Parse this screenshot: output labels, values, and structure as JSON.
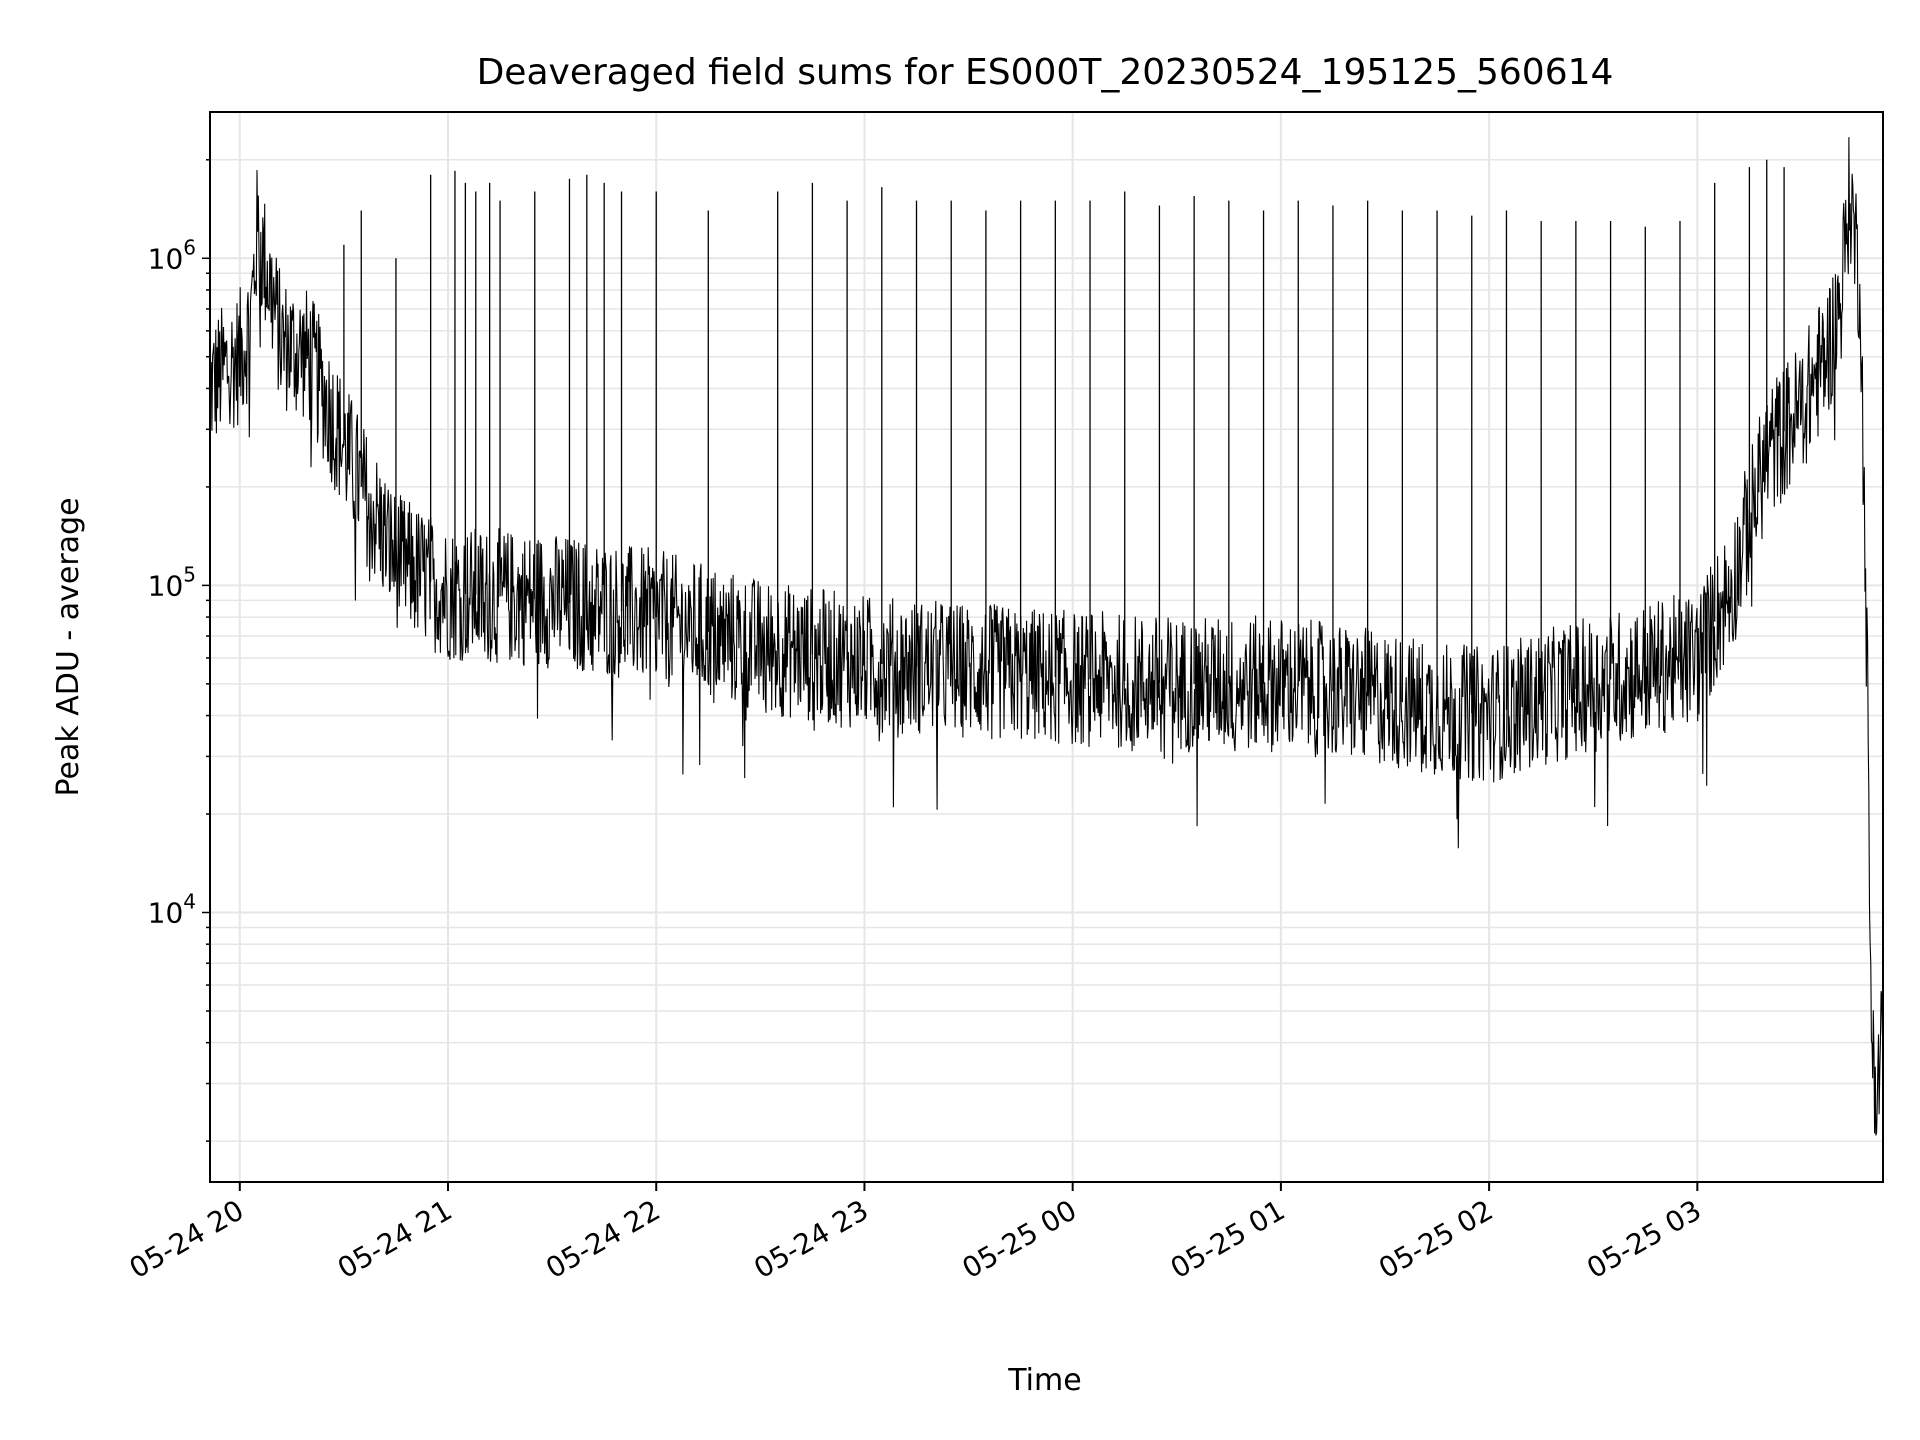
{
  "chart_data": {
    "type": "line",
    "title": "Deaveraged field sums for ES000T_20230524_195125_560614",
    "xlabel": "Time",
    "ylabel": "Peak ADU - average",
    "y_scale": "log",
    "ylim": [
      1500,
      2800000
    ],
    "xlim": [
      "2023-05-24 19:51:25",
      "2023-05-25 03:53:30"
    ],
    "grid": true,
    "legend": "none",
    "line_color": "#000000",
    "grid_color": "#e6e6e6",
    "x_ticks": [
      {
        "t": "2023-05-24 20:00",
        "label": "05-24 20"
      },
      {
        "t": "2023-05-24 21:00",
        "label": "05-24 21"
      },
      {
        "t": "2023-05-24 22:00",
        "label": "05-24 22"
      },
      {
        "t": "2023-05-24 23:00",
        "label": "05-24 23"
      },
      {
        "t": "2023-05-25 00:00",
        "label": "05-25 00"
      },
      {
        "t": "2023-05-25 01:00",
        "label": "05-25 01"
      },
      {
        "t": "2023-05-25 02:00",
        "label": "05-25 02"
      },
      {
        "t": "2023-05-25 03:00",
        "label": "05-25 03"
      }
    ],
    "y_ticks": [
      {
        "value": 10000,
        "base": "10",
        "exp": "4"
      },
      {
        "value": 100000,
        "base": "10",
        "exp": "5"
      },
      {
        "value": 1000000,
        "base": "10",
        "exp": "6"
      }
    ],
    "baseline": {
      "x": [
        "2023-05-24 19:51:25",
        "2023-05-24 19:55",
        "2023-05-24 20:00",
        "2023-05-24 20:03",
        "2023-05-24 20:05",
        "2023-05-24 20:08",
        "2023-05-24 20:12",
        "2023-05-24 20:20",
        "2023-05-24 20:28",
        "2023-05-24 20:35",
        "2023-05-24 20:45",
        "2023-05-24 21:00",
        "2023-05-24 21:30",
        "2023-05-24 22:00",
        "2023-05-24 22:30",
        "2023-05-24 23:00",
        "2023-05-24 23:30",
        "2023-05-25 00:00",
        "2023-05-25 00:30",
        "2023-05-25 01:00",
        "2023-05-25 01:30",
        "2023-05-25 01:45",
        "2023-05-25 02:00",
        "2023-05-25 02:15",
        "2023-05-25 02:30",
        "2023-05-25 02:45",
        "2023-05-25 03:00",
        "2023-05-25 03:10",
        "2023-05-25 03:20",
        "2023-05-25 03:30",
        "2023-05-25 03:37",
        "2023-05-25 03:41",
        "2023-05-25 03:44",
        "2023-05-25 03:47",
        "2023-05-25 03:49",
        "2023-05-25 03:50",
        "2023-05-25 03:51",
        "2023-05-25 03:52",
        "2023-05-25 03:53"
      ],
      "y": [
        400000,
        450000,
        500000,
        620000,
        1200000,
        900000,
        550000,
        500000,
        300000,
        200000,
        120000,
        95000,
        90000,
        80000,
        65000,
        58000,
        55000,
        52000,
        50000,
        50000,
        45000,
        42000,
        40000,
        45000,
        50000,
        55000,
        60000,
        100000,
        250000,
        350000,
        500000,
        700000,
        1600000,
        800000,
        50000,
        5000,
        3500,
        2500,
        5000
      ]
    },
    "spikes": {
      "x": [
        "2023-05-24 20:30",
        "2023-05-24 20:35",
        "2023-05-24 20:45",
        "2023-05-24 20:55",
        "2023-05-24 21:02",
        "2023-05-24 21:05",
        "2023-05-24 21:08",
        "2023-05-24 21:12",
        "2023-05-24 21:15",
        "2023-05-24 21:25",
        "2023-05-24 21:35",
        "2023-05-24 21:40",
        "2023-05-24 21:45",
        "2023-05-24 21:50",
        "2023-05-24 22:00",
        "2023-05-24 22:15",
        "2023-05-24 22:35",
        "2023-05-24 22:45",
        "2023-05-24 22:55",
        "2023-05-24 23:05",
        "2023-05-24 23:15",
        "2023-05-24 23:25",
        "2023-05-24 23:35",
        "2023-05-24 23:45",
        "2023-05-24 23:55",
        "2023-05-25 00:05",
        "2023-05-25 00:15",
        "2023-05-25 00:25",
        "2023-05-25 00:35",
        "2023-05-25 00:45",
        "2023-05-25 00:55",
        "2023-05-25 01:05",
        "2023-05-25 01:15",
        "2023-05-25 01:25",
        "2023-05-25 01:35",
        "2023-05-25 01:45",
        "2023-05-25 01:55",
        "2023-05-25 02:05",
        "2023-05-25 02:15",
        "2023-05-25 02:25",
        "2023-05-25 02:35",
        "2023-05-25 02:45",
        "2023-05-25 02:55",
        "2023-05-25 03:05",
        "2023-05-25 03:15",
        "2023-05-25 03:20",
        "2023-05-25 03:25"
      ],
      "y": [
        1100000,
        1400000,
        1000000,
        1800000,
        1850000,
        1700000,
        1600000,
        1700000,
        1500000,
        1600000,
        1750000,
        1800000,
        1700000,
        1600000,
        1600000,
        1400000,
        1600000,
        1700000,
        1500000,
        1650000,
        1500000,
        1500000,
        1400000,
        1500000,
        1500000,
        1500000,
        1600000,
        1450000,
        1550000,
        1500000,
        1400000,
        1500000,
        1450000,
        1500000,
        1400000,
        1400000,
        1350000,
        1400000,
        1300000,
        1300000,
        1300000,
        1250000,
        1300000,
        1700000,
        1900000,
        2000000,
        1900000
      ]
    }
  }
}
